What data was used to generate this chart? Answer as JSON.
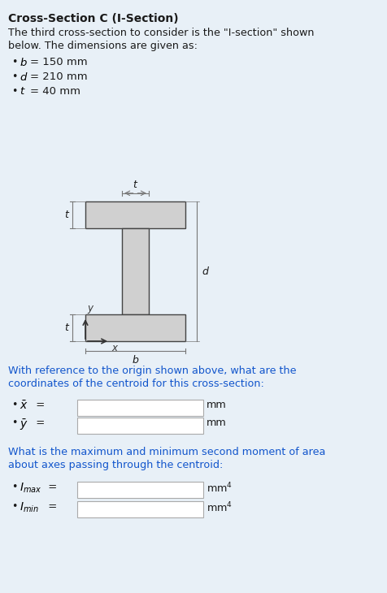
{
  "bg_color": "#e8f0f7",
  "title": "Cross-Section C (I-Section)",
  "intro_line1": "The third cross-section to consider is the \"I-section\" shown",
  "intro_line2": "below. The dimensions are given as:",
  "dim_bullet1": "b = 150 mm",
  "dim_bullet2": "d = 210 mm",
  "dim_bullet3": "t = 40 mm",
  "section_text1_line1": "With reference to the origin shown above, what are the",
  "section_text1_line2": "coordinates of the centroid for this cross-section:",
  "section_text2_line1": "What is the maximum and minimum second moment of area",
  "section_text2_line2": "about axes passing through the centroid:",
  "unit_mm": "mm",
  "unit_mm4": "mm",
  "bg_color_hex": "#e8f0f7",
  "shape_fill": "#d0d0d0",
  "shape_edge": "#444444",
  "dim_line_color": "#777777",
  "white": "#ffffff",
  "box_edge": "#aaaaaa",
  "arrow_color": "#333333",
  "text_color": "#1a1a1a",
  "highlight_color": "#1155cc"
}
